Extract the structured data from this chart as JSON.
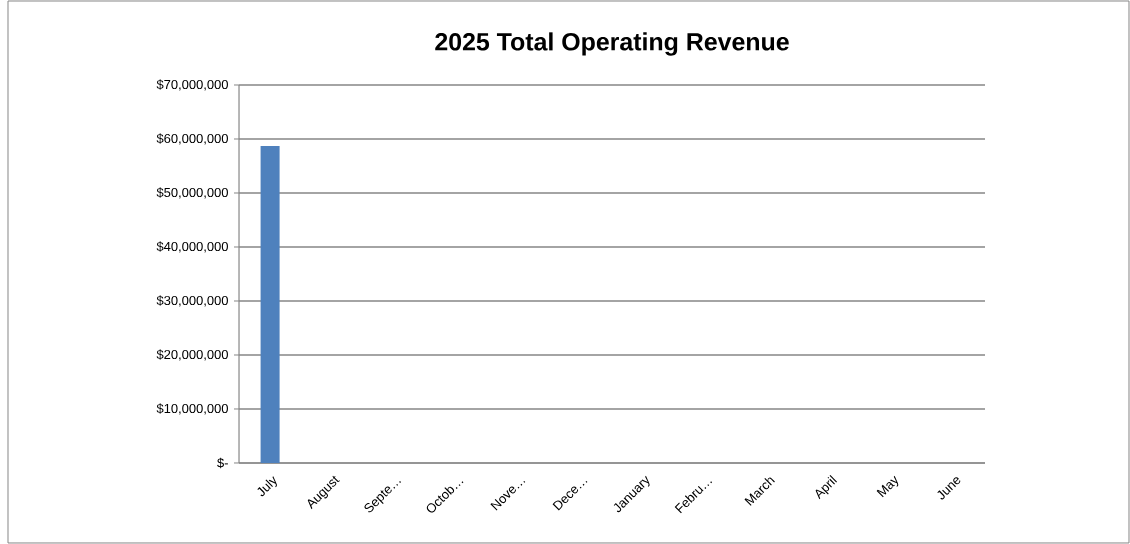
{
  "chart_data": {
    "type": "bar",
    "title": "2025 Total Operating Revenue",
    "categories": [
      "July",
      "August",
      "Septe…",
      "Octob…",
      "Nove…",
      "Dece…",
      "January",
      "Febru…",
      "March",
      "April",
      "May",
      "June"
    ],
    "values": [
      58700000,
      null,
      null,
      null,
      null,
      null,
      null,
      null,
      null,
      null,
      null,
      null
    ],
    "color": "#4f81bd",
    "ylim": [
      0,
      70000000
    ],
    "yticks": [
      {
        "value": 0,
        "label": "$-"
      },
      {
        "value": 10000000,
        "label": "$10,000,000"
      },
      {
        "value": 20000000,
        "label": "$20,000,000"
      },
      {
        "value": 30000000,
        "label": "$30,000,000"
      },
      {
        "value": 40000000,
        "label": "$40,000,000"
      },
      {
        "value": 50000000,
        "label": "$50,000,000"
      },
      {
        "value": 60000000,
        "label": "$60,000,000"
      },
      {
        "value": 70000000,
        "label": "$70,000,000"
      }
    ],
    "grid": "y"
  }
}
